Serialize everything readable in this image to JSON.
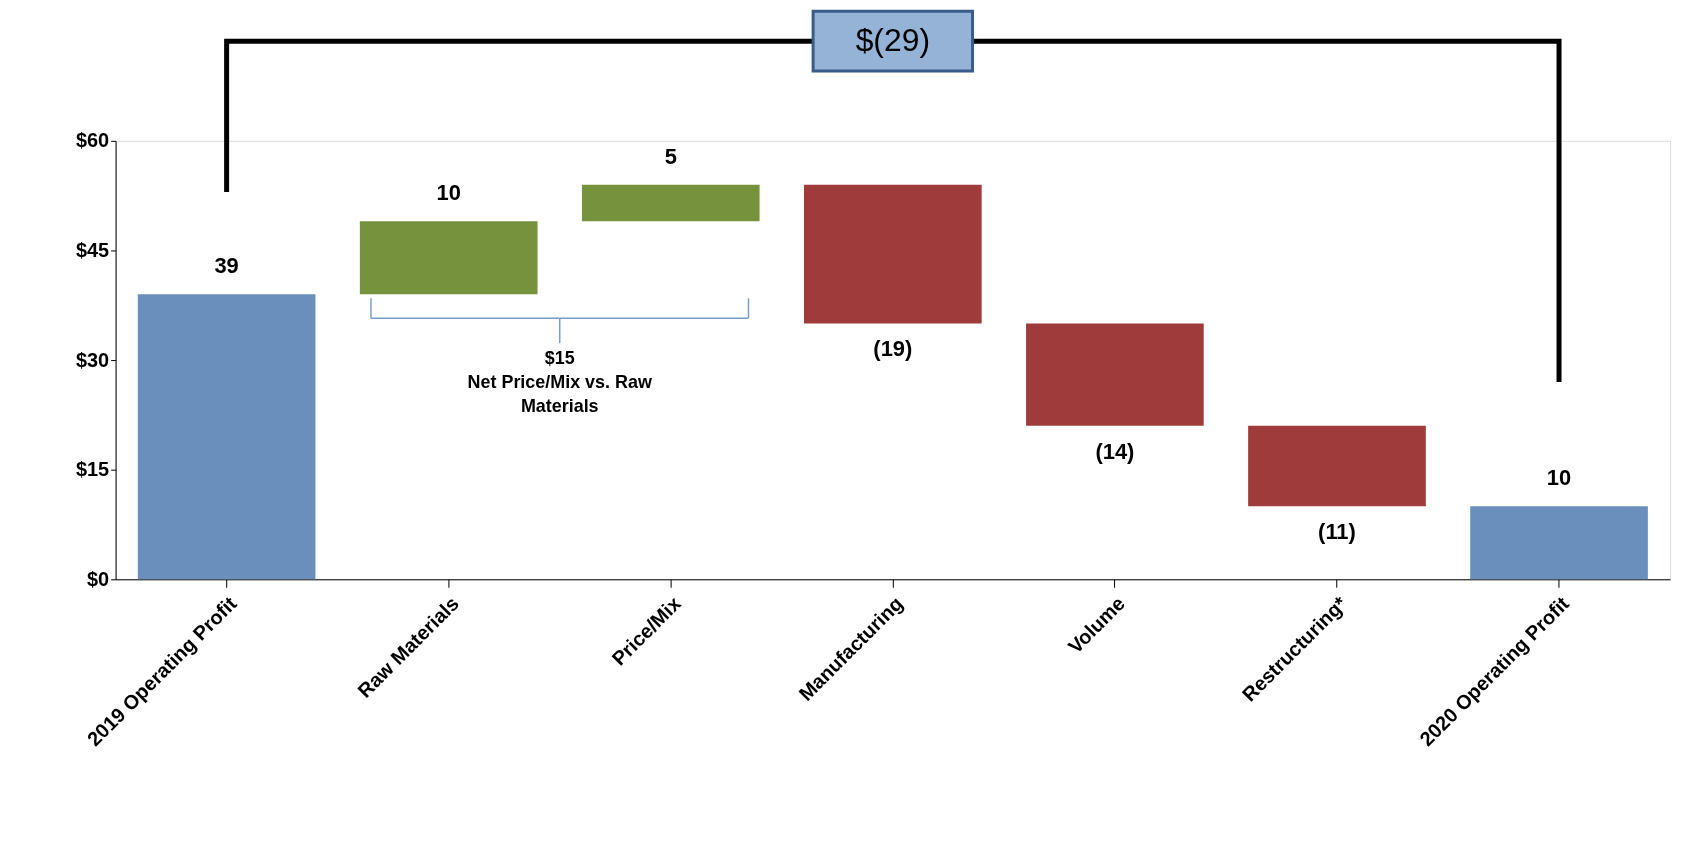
{
  "chart_data": {
    "type": "bar",
    "categories": [
      "2019 Operating Profit",
      "Raw Materials",
      "Price/Mix",
      "Manufacturing",
      "Volume",
      "Restructuring*",
      "2020 Operating Profit"
    ],
    "values": [
      39,
      10,
      5,
      -19,
      -14,
      -11,
      10
    ],
    "base": [
      0,
      39,
      49,
      54,
      35,
      21,
      0
    ],
    "colors": [
      "#6a8fbc",
      "#77923c",
      "#77923c",
      "#a03b3b",
      "#a03b3b",
      "#a03b3b",
      "#6a8fbc"
    ],
    "value_labels": [
      "39",
      "10",
      "5",
      "(19)",
      "(14)",
      "(11)",
      "10"
    ],
    "ylim": [
      0,
      60
    ],
    "yticks": [
      {
        "value": 0,
        "label": "$0"
      },
      {
        "value": 15,
        "label": "$15"
      },
      {
        "value": 30,
        "label": "$30"
      },
      {
        "value": 45,
        "label": "$45"
      },
      {
        "value": 60,
        "label": "$60"
      }
    ],
    "annotations": [
      "$(29)",
      "$15\nNet Price/Mix vs. Raw\nMaterials"
    ],
    "grid": false,
    "legend": false
  }
}
